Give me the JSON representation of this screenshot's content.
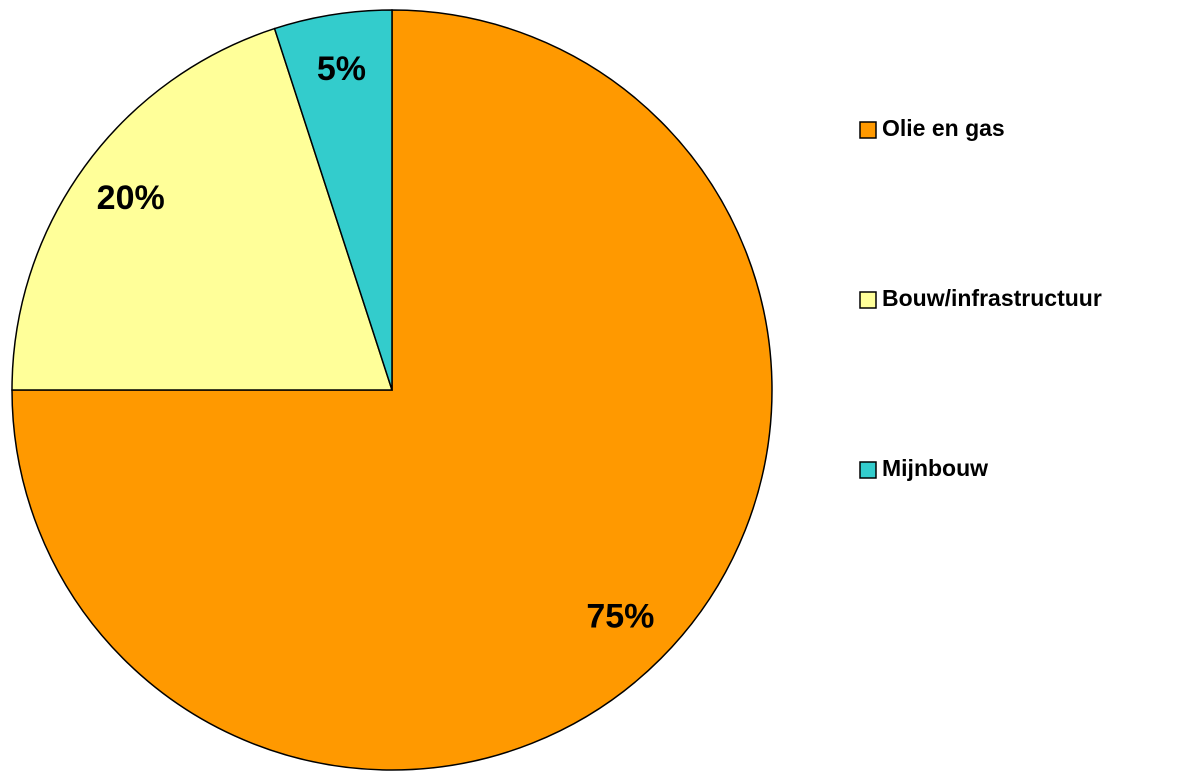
{
  "chart_data": {
    "type": "pie",
    "categories": [
      "Olie en gas",
      "Bouw/infrastructuur",
      "Mijnbouw"
    ],
    "values": [
      75,
      20,
      5
    ],
    "value_labels": [
      "75%",
      "20%",
      "5%"
    ],
    "colors": [
      "#ff9900",
      "#ffff99",
      "#33cccc"
    ],
    "legend": "right"
  }
}
